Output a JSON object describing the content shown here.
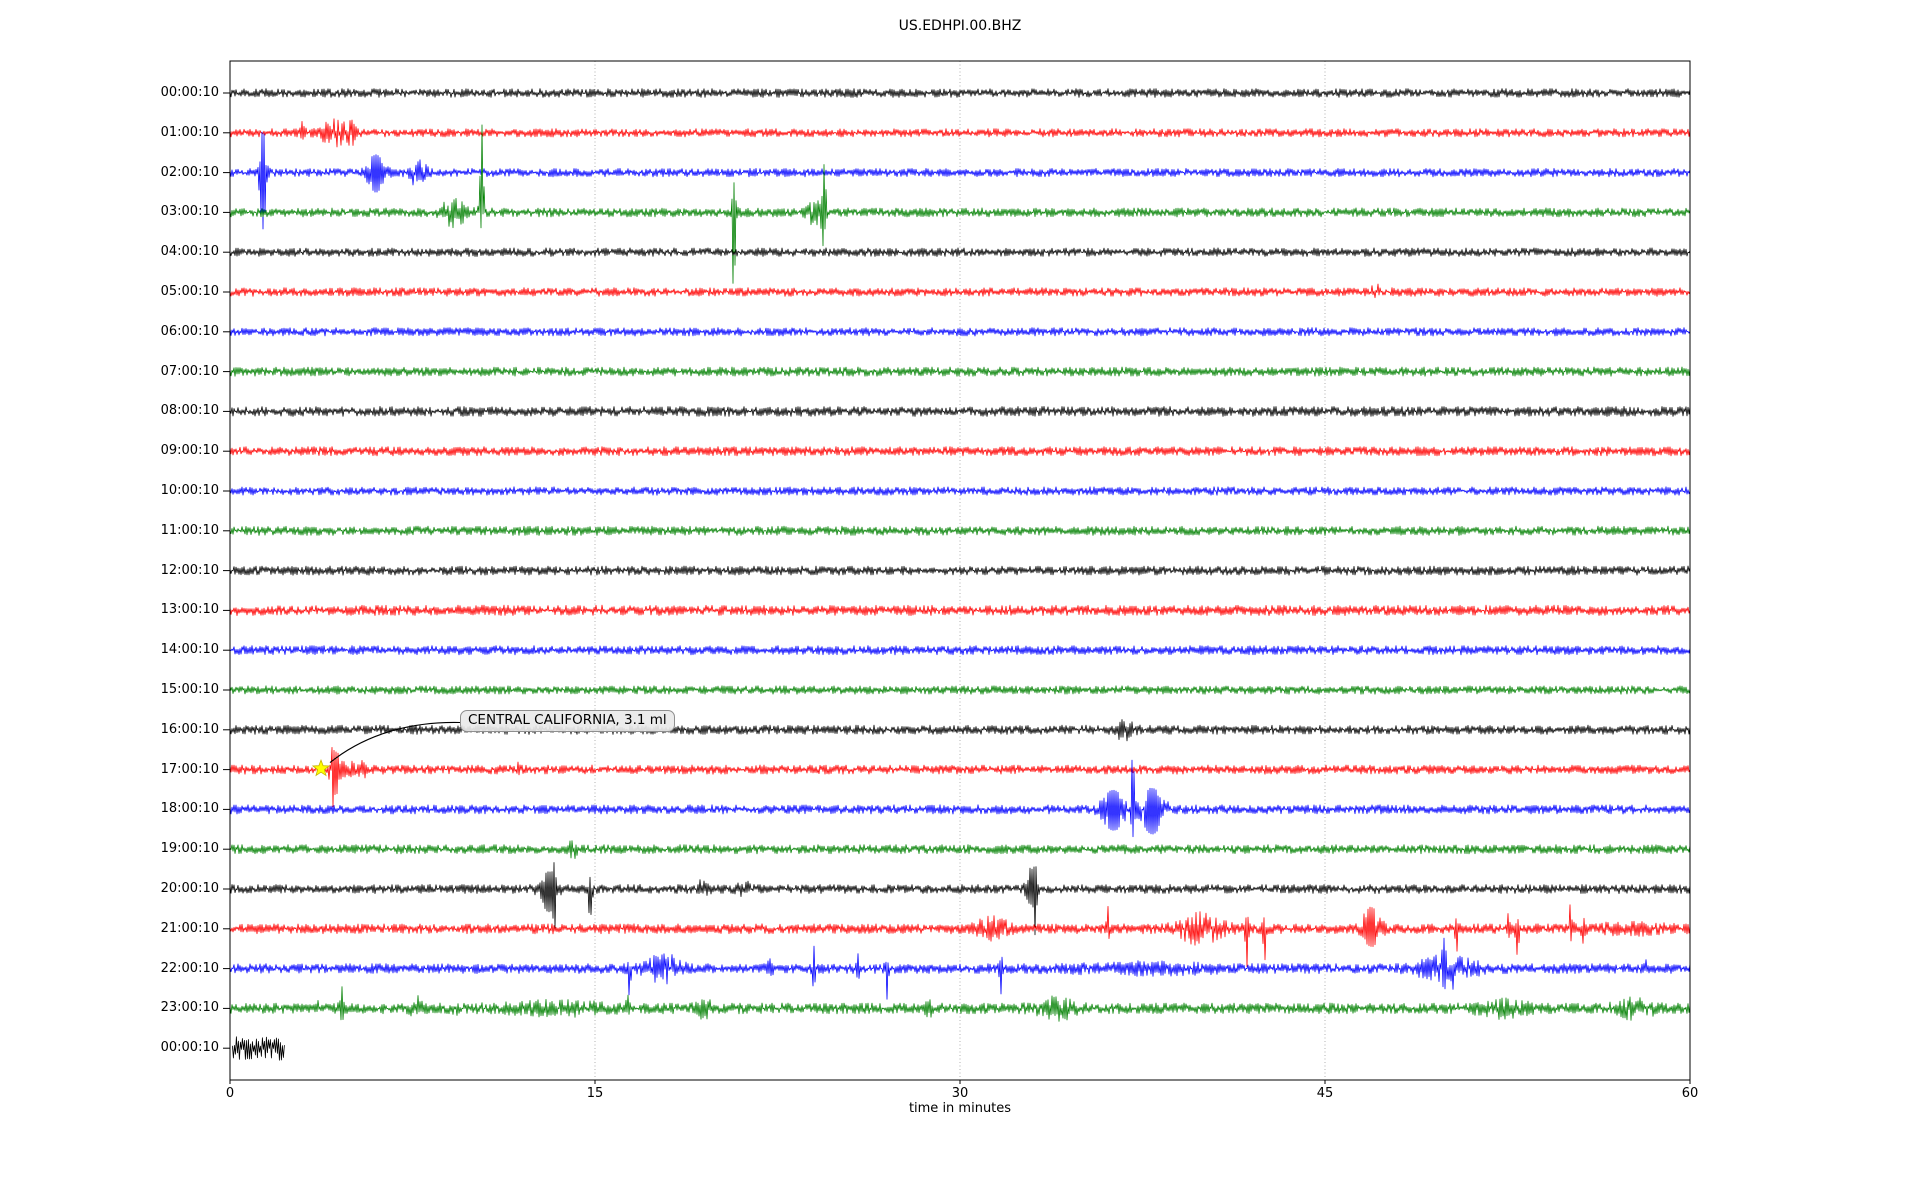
{
  "title": "US.EDHPI.00.BHZ",
  "chart_data": {
    "type": "line",
    "subtype": "seismogram_dayplot",
    "station": "US.EDHPI.00.BHZ",
    "xlabel": "time in minutes",
    "xlim": [
      0,
      60
    ],
    "xticks": [
      0,
      15,
      30,
      45,
      60
    ],
    "grid_minutes": [
      15,
      30,
      45
    ],
    "grid_on": true,
    "grid_color": "#b0b0b0",
    "axis_color": "#000000",
    "trace_color_cycle": [
      "#000000",
      "#ff0000",
      "#0000ff",
      "#008000"
    ],
    "annotation": {
      "text": "CENTRAL CALIFORNIA, 3.1 ml",
      "row_label": "17:00:10",
      "row_index": 17,
      "minute": 3.74,
      "marker": "star",
      "marker_color": "#ffff00",
      "marker_edge_color": "#c8b400",
      "box_fill": "#e9e9e9",
      "box_edge": "#8f8f8f"
    },
    "rows": [
      {
        "label": "00:00:10",
        "color": "#000000",
        "amp": 4.4,
        "events": []
      },
      {
        "label": "01:00:10",
        "color": "#ff0000",
        "amp": 4.2,
        "events": [
          {
            "m": 3.0,
            "d": 0.08,
            "u": 10,
            "l": 6
          },
          {
            "m": 4.3,
            "d": 0.45,
            "u": 14,
            "l": 16
          },
          {
            "m": 5.0,
            "d": 0.15,
            "u": 8,
            "l": 10
          }
        ]
      },
      {
        "label": "02:00:10",
        "color": "#0000ff",
        "amp": 4.2,
        "events": [
          {
            "m": 1.35,
            "d": 0.14,
            "u": 42,
            "l": 56
          },
          {
            "m": 6.0,
            "d": 0.35,
            "u": 15,
            "l": 17
          },
          {
            "m": 7.75,
            "d": 0.3,
            "u": 13,
            "l": 15
          }
        ]
      },
      {
        "label": "03:00:10",
        "color": "#008000",
        "amp": 4.5,
        "events": [
          {
            "m": 9.2,
            "d": 0.5,
            "u": 12,
            "l": 12
          },
          {
            "m": 10.35,
            "d": 0.09,
            "u": 90,
            "l": 14
          },
          {
            "m": 20.7,
            "d": 0.1,
            "u": 28,
            "l": 78
          },
          {
            "m": 24.0,
            "d": 0.3,
            "u": 10,
            "l": 10
          },
          {
            "m": 24.4,
            "d": 0.1,
            "u": 46,
            "l": 32
          }
        ]
      },
      {
        "label": "04:00:10",
        "color": "#000000",
        "amp": 4.3,
        "events": []
      },
      {
        "label": "05:00:10",
        "color": "#ff0000",
        "amp": 4.3,
        "events": [
          {
            "m": 47.0,
            "d": 0.25,
            "u": 7,
            "l": 4
          }
        ]
      },
      {
        "label": "06:00:10",
        "color": "#0000ff",
        "amp": 4.2,
        "events": []
      },
      {
        "label": "07:00:10",
        "color": "#008000",
        "amp": 4.6,
        "events": []
      },
      {
        "label": "08:00:10",
        "color": "#000000",
        "amp": 5.0,
        "events": []
      },
      {
        "label": "09:00:10",
        "color": "#ff0000",
        "amp": 4.6,
        "events": []
      },
      {
        "label": "10:00:10",
        "color": "#0000ff",
        "amp": 4.2,
        "events": []
      },
      {
        "label": "11:00:10",
        "color": "#008000",
        "amp": 4.6,
        "events": []
      },
      {
        "label": "12:00:10",
        "color": "#000000",
        "amp": 4.6,
        "events": []
      },
      {
        "label": "13:00:10",
        "color": "#ff0000",
        "amp": 5.2,
        "events": []
      },
      {
        "label": "14:00:10",
        "color": "#0000ff",
        "amp": 4.6,
        "events": []
      },
      {
        "label": "15:00:10",
        "color": "#008000",
        "amp": 4.2,
        "events": []
      },
      {
        "label": "16:00:10",
        "color": "#000000",
        "amp": 4.6,
        "events": [
          {
            "m": 36.8,
            "d": 0.3,
            "u": 12,
            "l": 13
          }
        ]
      },
      {
        "label": "17:00:10",
        "color": "#ff0000",
        "amp": 4.6,
        "events": [
          {
            "m": 4.35,
            "d": 0.25,
            "u": 14,
            "l": 20
          },
          {
            "m": 4.2,
            "d": 0.06,
            "u": 10,
            "l": 26
          },
          {
            "m": 5.2,
            "d": 0.5,
            "u": 7,
            "l": 7
          },
          {
            "m": 11.8,
            "d": 0.06,
            "u": 14,
            "l": 4
          }
        ]
      },
      {
        "label": "18:00:10",
        "color": "#0000ff",
        "amp": 4.6,
        "events": [
          {
            "m": 36.3,
            "d": 0.5,
            "u": 16,
            "l": 18
          },
          {
            "m": 37.1,
            "d": 0.07,
            "u": 56,
            "l": 22
          },
          {
            "m": 37.9,
            "d": 0.5,
            "u": 18,
            "l": 22
          }
        ]
      },
      {
        "label": "19:00:10",
        "color": "#008000",
        "amp": 4.6,
        "events": [
          {
            "m": 14.1,
            "d": 0.15,
            "u": 9,
            "l": 9
          }
        ]
      },
      {
        "label": "20:00:10",
        "color": "#000000",
        "amp": 4.6,
        "events": [
          {
            "m": 13.1,
            "d": 0.35,
            "u": 14,
            "l": 20
          },
          {
            "m": 13.35,
            "d": 0.08,
            "u": 16,
            "l": 26
          },
          {
            "m": 14.8,
            "d": 0.1,
            "u": 8,
            "l": 26
          },
          {
            "m": 19.4,
            "d": 0.25,
            "u": 7,
            "l": 6
          },
          {
            "m": 21.1,
            "d": 0.25,
            "u": 6,
            "l": 6
          },
          {
            "m": 32.9,
            "d": 0.2,
            "u": 18,
            "l": 12
          },
          {
            "m": 33.1,
            "d": 0.07,
            "u": 16,
            "l": 42
          }
        ]
      },
      {
        "label": "21:00:10",
        "color": "#ff0000",
        "amp": 5.0,
        "events": [
          {
            "m": 31.3,
            "d": 0.6,
            "u": 11,
            "l": 11
          },
          {
            "m": 36.1,
            "d": 0.08,
            "u": 20,
            "l": 6
          },
          {
            "m": 39.9,
            "d": 0.9,
            "u": 13,
            "l": 13
          },
          {
            "m": 41.8,
            "d": 0.08,
            "u": 9,
            "l": 36
          },
          {
            "m": 42.5,
            "d": 0.08,
            "u": 7,
            "l": 34
          },
          {
            "m": 46.9,
            "d": 0.4,
            "u": 18,
            "l": 14
          },
          {
            "m": 50.4,
            "d": 0.08,
            "u": 6,
            "l": 21
          },
          {
            "m": 52.5,
            "d": 0.12,
            "u": 13,
            "l": 9
          },
          {
            "m": 52.9,
            "d": 0.08,
            "u": 6,
            "l": 23
          },
          {
            "m": 55.1,
            "d": 0.08,
            "u": 24,
            "l": 8
          },
          {
            "m": 55.6,
            "d": 0.08,
            "u": 22,
            "l": 10
          },
          {
            "m": 57.5,
            "d": 1.5,
            "u": 3,
            "l": 3
          }
        ]
      },
      {
        "label": "22:00:10",
        "color": "#0000ff",
        "amp": 5.0,
        "events": [
          {
            "m": 16.4,
            "d": 0.08,
            "u": 8,
            "l": 23
          },
          {
            "m": 17.8,
            "d": 0.7,
            "u": 12,
            "l": 12
          },
          {
            "m": 22.2,
            "d": 0.08,
            "u": 11,
            "l": 11
          },
          {
            "m": 24.0,
            "d": 0.08,
            "u": 18,
            "l": 18
          },
          {
            "m": 25.8,
            "d": 0.08,
            "u": 11,
            "l": 13
          },
          {
            "m": 27.0,
            "d": 0.08,
            "u": 8,
            "l": 28
          },
          {
            "m": 31.7,
            "d": 0.08,
            "u": 8,
            "l": 23
          },
          {
            "m": 37.5,
            "d": 3.0,
            "u": 3,
            "l": 3
          },
          {
            "m": 49.9,
            "d": 0.08,
            "u": 18,
            "l": 8
          },
          {
            "m": 50.0,
            "d": 1.2,
            "u": 10,
            "l": 10
          },
          {
            "m": 50.25,
            "d": 0.06,
            "u": 26,
            "l": 8
          },
          {
            "m": 58.2,
            "d": 0.08,
            "u": 6,
            "l": 13
          }
        ]
      },
      {
        "label": "23:00:10",
        "color": "#008000",
        "amp": 5.4,
        "events": [
          {
            "m": 3.6,
            "d": 0.08,
            "u": 9,
            "l": 6
          },
          {
            "m": 4.6,
            "d": 0.1,
            "u": 18,
            "l": 8
          },
          {
            "m": 7.7,
            "d": 0.25,
            "u": 8,
            "l": 8
          },
          {
            "m": 9.3,
            "d": 0.08,
            "u": 5,
            "l": 13
          },
          {
            "m": 13.5,
            "d": 2.0,
            "u": 4,
            "l": 4
          },
          {
            "m": 16.3,
            "d": 0.08,
            "u": 13,
            "l": 6
          },
          {
            "m": 19.5,
            "d": 0.3,
            "u": 7,
            "l": 7
          },
          {
            "m": 28.7,
            "d": 0.1,
            "u": 13,
            "l": 11
          },
          {
            "m": 34.0,
            "d": 0.8,
            "u": 8,
            "l": 8
          },
          {
            "m": 52.3,
            "d": 1.0,
            "u": 6,
            "l": 6
          },
          {
            "m": 57.7,
            "d": 0.8,
            "u": 7,
            "l": 7
          }
        ]
      },
      {
        "label": "00:00:10",
        "color": "#000000",
        "amp": 12,
        "start_min": 0.1,
        "end_min": 2.25,
        "events": []
      }
    ]
  }
}
